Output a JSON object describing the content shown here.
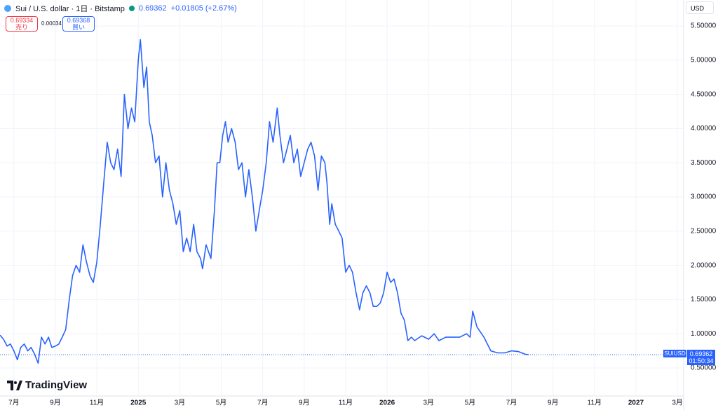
{
  "chart_data": {
    "type": "line",
    "title": "Sui / U.S. dollar · 1日 · Bitstamp",
    "last_price": 0.69362,
    "change": "+0.01805 (+2.67%)",
    "sell_price": 0.69334,
    "sell_label": "売り",
    "spread": 0.00034,
    "buy_price": 0.69368,
    "buy_label": "買い",
    "currency": "USD",
    "symbol": "SUIUSD",
    "countdown": "01:50:34",
    "brand": "TradingView",
    "series": [
      {
        "name": "SUIUSD",
        "color": "#2962ff",
        "x": [
          -0.67,
          -0.5,
          -0.33,
          -0.17,
          0,
          0.17,
          0.33,
          0.5,
          0.67,
          0.83,
          1,
          1.17,
          1.33,
          1.5,
          1.67,
          1.83,
          2,
          2.17,
          2.33,
          2.5,
          2.67,
          2.83,
          3,
          3.17,
          3.33,
          3.5,
          3.67,
          3.83,
          4,
          4.17,
          4.33,
          4.5,
          4.67,
          4.83,
          5,
          5.17,
          5.33,
          5.5,
          5.67,
          5.83,
          6,
          6.1,
          6.27,
          6.4,
          6.53,
          6.67,
          6.83,
          7,
          7.17,
          7.33,
          7.5,
          7.67,
          7.83,
          8,
          8.17,
          8.33,
          8.5,
          8.67,
          8.83,
          9,
          9.1,
          9.27,
          9.5,
          9.67,
          9.8,
          9.93,
          10.07,
          10.2,
          10.33,
          10.5,
          10.67,
          10.83,
          11,
          11.17,
          11.33,
          11.5,
          11.67,
          11.83,
          12,
          12.17,
          12.33,
          12.5,
          12.7,
          12.83,
          13,
          13.17,
          13.33,
          13.5,
          13.67,
          13.83,
          14,
          14.17,
          14.33,
          14.5,
          14.67,
          14.83,
          15,
          15.1,
          15.23,
          15.33,
          15.5,
          15.67,
          15.83,
          16,
          16.17,
          16.33,
          16.5,
          16.67,
          16.83,
          17,
          17.17,
          17.33,
          17.5,
          17.67,
          17.83,
          18,
          18.17,
          18.33,
          18.5,
          18.67,
          18.83,
          19,
          19.17,
          19.33,
          19.67,
          20,
          20.27,
          20.5,
          20.83,
          21.17,
          21.5,
          21.83,
          22,
          22.13,
          22.33,
          22.67,
          23,
          23.33,
          23.67,
          24,
          24.33,
          24.67,
          24.83
        ],
        "values": [
          0.98,
          0.92,
          0.82,
          0.85,
          0.75,
          0.62,
          0.8,
          0.85,
          0.75,
          0.8,
          0.7,
          0.57,
          0.95,
          0.85,
          0.95,
          0.8,
          0.82,
          0.85,
          0.95,
          1.06,
          1.5,
          1.85,
          2,
          1.9,
          2.3,
          2.05,
          1.85,
          1.75,
          2.05,
          2.6,
          3.2,
          3.8,
          3.5,
          3.4,
          3.7,
          3.3,
          4.5,
          4,
          4.3,
          4.1,
          5,
          5.3,
          4.6,
          4.9,
          4.1,
          3.9,
          3.5,
          3.6,
          3,
          3.5,
          3.1,
          2.9,
          2.6,
          2.8,
          2.2,
          2.4,
          2.2,
          2.6,
          2.2,
          2.1,
          1.95,
          2.3,
          2.1,
          2.8,
          3.5,
          3.5,
          3.9,
          4.1,
          3.8,
          4,
          3.8,
          3.4,
          3.5,
          3,
          3.4,
          3,
          2.5,
          2.8,
          3.1,
          3.5,
          4.1,
          3.8,
          4.3,
          3.9,
          3.5,
          3.7,
          3.9,
          3.5,
          3.7,
          3.3,
          3.5,
          3.7,
          3.8,
          3.6,
          3.1,
          3.6,
          3.5,
          3.2,
          2.6,
          2.9,
          2.6,
          2.5,
          2.4,
          1.9,
          2,
          1.9,
          1.6,
          1.35,
          1.6,
          1.7,
          1.6,
          1.4,
          1.4,
          1.45,
          1.6,
          1.9,
          1.75,
          1.8,
          1.6,
          1.3,
          1.2,
          0.9,
          0.95,
          0.9,
          0.97,
          0.92,
          1,
          0.9,
          0.95,
          0.95,
          0.95,
          1,
          0.95,
          1.33,
          1.1,
          0.95,
          0.75,
          0.72,
          0.72,
          0.75,
          0.74,
          0.7,
          0.69362
        ]
      }
    ],
    "xlim": [
      -0.67,
      32.3
    ],
    "xticks": [
      {
        "value": 0,
        "label": "7月"
      },
      {
        "value": 2,
        "label": "9月"
      },
      {
        "value": 4,
        "label": "11月"
      },
      {
        "value": 6,
        "label": "2025"
      },
      {
        "value": 8,
        "label": "3月"
      },
      {
        "value": 10,
        "label": "5月"
      },
      {
        "value": 12,
        "label": "7月"
      },
      {
        "value": 14,
        "label": "9月"
      },
      {
        "value": 16,
        "label": "11月"
      },
      {
        "value": 18,
        "label": "2026"
      },
      {
        "value": 20,
        "label": "3月"
      },
      {
        "value": 22,
        "label": "5月"
      },
      {
        "value": 24,
        "label": "7月"
      },
      {
        "value": 26,
        "label": "9月"
      },
      {
        "value": 28,
        "label": "11月"
      },
      {
        "value": 30,
        "label": "2027"
      },
      {
        "value": 32,
        "label": "3月"
      }
    ],
    "ylim": [
      0.09,
      5.88
    ],
    "yticks": [
      {
        "value": 0.5,
        "label": "0.50000"
      },
      {
        "value": 1,
        "label": "1.00000"
      },
      {
        "value": 1.5,
        "label": "1.50000"
      },
      {
        "value": 2,
        "label": "2.00000"
      },
      {
        "value": 2.5,
        "label": "2.50000"
      },
      {
        "value": 3,
        "label": "3.00000"
      },
      {
        "value": 3.5,
        "label": "3.50000"
      },
      {
        "value": 4,
        "label": "4.00000"
      },
      {
        "value": 4.5,
        "label": "4.50000"
      },
      {
        "value": 5,
        "label": "5.00000"
      },
      {
        "value": 5.5,
        "label": "5.50000"
      }
    ],
    "grid": true
  }
}
